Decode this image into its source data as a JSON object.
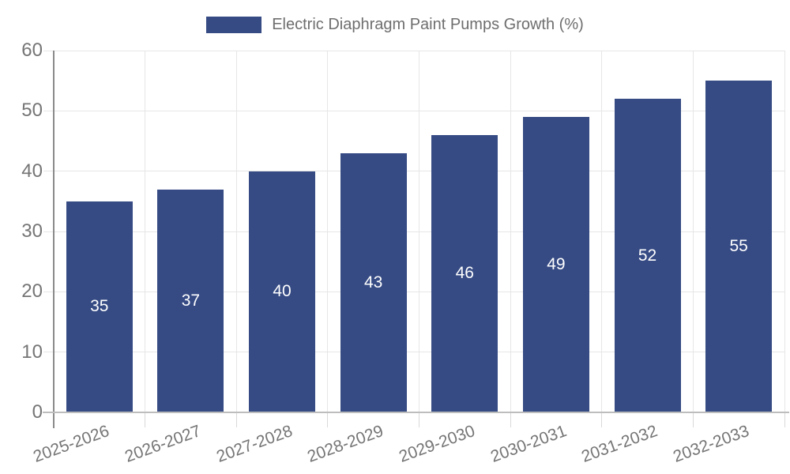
{
  "legend": {
    "label": "Electric Diaphragm Paint Pumps Growth (%)"
  },
  "chart_data": {
    "type": "bar",
    "title": "",
    "series_name": "Electric Diaphragm Paint Pumps Growth (%)",
    "categories": [
      "2025-2026",
      "2026-2027",
      "2027-2028",
      "2028-2029",
      "2029-2030",
      "2030-2031",
      "2031-2032",
      "2032-2033"
    ],
    "values": [
      35,
      37,
      40,
      43,
      46,
      49,
      52,
      55
    ],
    "bar_labels_shown": true,
    "xlabel": "",
    "ylabel": "",
    "ylim": [
      0,
      60
    ],
    "yticks": [
      0,
      10,
      20,
      30,
      40,
      50,
      60
    ],
    "grid": true,
    "legend_position": "top-center",
    "colors": {
      "bar": "#364B84",
      "bar_label": "#ffffff",
      "axis_text": "#757575",
      "legend_text": "#6e6e6e",
      "gridline": "#e6e6e6",
      "y_axis_line": "#8a8a8a",
      "x_axis_line": "#bdbdbd",
      "boundary_tick": "#d9d9d9",
      "background": "#ffffff"
    }
  }
}
